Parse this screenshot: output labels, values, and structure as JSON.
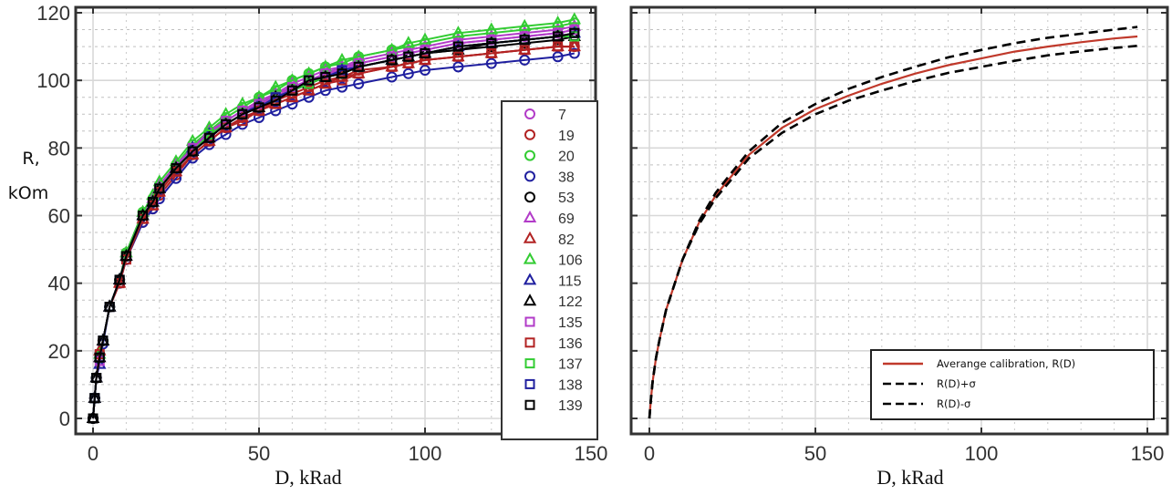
{
  "chart_data": [
    {
      "type": "line",
      "panel": "left",
      "title": "",
      "xlabel": "D, kRad",
      "ylabel": "R, kOm",
      "xlim": [
        -4,
        151
      ],
      "ylim": [
        -4.5,
        122
      ],
      "xticks": [
        0,
        50,
        100,
        150
      ],
      "yticks": [
        0,
        20,
        40,
        60,
        80,
        100,
        120
      ],
      "grid": true,
      "legend_position": "right-center",
      "x": [
        0,
        0.5,
        1,
        2,
        3,
        5,
        8,
        10,
        15,
        18,
        20,
        25,
        30,
        35,
        40,
        45,
        50,
        55,
        60,
        65,
        70,
        75,
        80,
        90,
        95,
        100,
        110,
        120,
        130,
        140,
        145
      ],
      "series": [
        {
          "name": "7",
          "color": "#b23bc8",
          "marker": "circle",
          "values": [
            0,
            6,
            12,
            19,
            23,
            33,
            41,
            48,
            60,
            64,
            68,
            74,
            80,
            84,
            88,
            91,
            93,
            96,
            98,
            100,
            102,
            104,
            105,
            107,
            108,
            109,
            111,
            112,
            113,
            114,
            115
          ]
        },
        {
          "name": "19",
          "color": "#b22222",
          "marker": "circle",
          "values": [
            0,
            6,
            12,
            19,
            23,
            33,
            40,
            47,
            58,
            62,
            66,
            72,
            78,
            82,
            86,
            89,
            91,
            94,
            96,
            98,
            100,
            101,
            103,
            104,
            105,
            106,
            107,
            108,
            109,
            110,
            110
          ]
        },
        {
          "name": "20",
          "color": "#33cc33",
          "marker": "circle",
          "values": [
            0,
            6,
            12,
            19,
            23,
            33,
            41,
            49,
            61,
            65,
            69,
            75,
            81,
            85,
            89,
            92,
            95,
            97,
            100,
            102,
            104,
            105,
            107,
            109,
            110,
            111,
            113,
            114,
            115,
            116,
            117
          ]
        },
        {
          "name": "38",
          "color": "#1f1f9f",
          "marker": "circle",
          "values": [
            0,
            6,
            12,
            18,
            22,
            33,
            40,
            47,
            58,
            62,
            65,
            71,
            77,
            81,
            84,
            87,
            89,
            91,
            93,
            95,
            97,
            98,
            99,
            101,
            102,
            103,
            104,
            105,
            106,
            107,
            108
          ]
        },
        {
          "name": "53",
          "color": "#000000",
          "marker": "circle",
          "values": [
            0,
            6,
            12,
            19,
            23,
            33,
            41,
            48,
            60,
            64,
            68,
            74,
            79,
            83,
            87,
            90,
            92,
            95,
            97,
            99,
            101,
            102,
            104,
            106,
            107,
            108,
            109,
            110,
            111,
            112,
            113
          ]
        },
        {
          "name": "69",
          "color": "#b23bc8",
          "marker": "triangle",
          "values": [
            0,
            6,
            12,
            18,
            23,
            33,
            41,
            49,
            61,
            65,
            69,
            75,
            80,
            85,
            88,
            91,
            94,
            96,
            99,
            101,
            103,
            104,
            106,
            108,
            109,
            110,
            112,
            113,
            114,
            115,
            116
          ]
        },
        {
          "name": "82",
          "color": "#b22222",
          "marker": "triangle",
          "values": [
            0,
            6,
            12,
            20,
            23,
            33,
            40,
            48,
            59,
            63,
            67,
            73,
            78,
            82,
            86,
            89,
            91,
            93,
            95,
            97,
            99,
            101,
            102,
            104,
            105,
            106,
            107,
            108,
            109,
            110,
            110
          ]
        },
        {
          "name": "106",
          "color": "#33cc33",
          "marker": "triangle",
          "values": [
            0,
            6,
            12,
            19,
            23,
            33,
            41,
            49,
            61,
            66,
            70,
            76,
            82,
            86,
            90,
            93,
            95,
            98,
            100,
            102,
            104,
            106,
            107,
            109,
            111,
            112,
            114,
            115,
            116,
            117,
            118
          ]
        },
        {
          "name": "115",
          "color": "#1f1f9f",
          "marker": "triangle",
          "values": [
            0,
            6,
            12,
            16,
            23,
            33,
            41,
            48,
            60,
            64,
            68,
            74,
            80,
            84,
            87,
            90,
            93,
            95,
            97,
            99,
            101,
            103,
            104,
            106,
            107,
            108,
            110,
            111,
            112,
            113,
            114
          ]
        },
        {
          "name": "122",
          "color": "#000000",
          "marker": "triangle",
          "values": [
            0,
            6,
            12,
            18,
            23,
            33,
            41,
            48,
            60,
            64,
            68,
            74,
            79,
            83,
            87,
            90,
            92,
            95,
            97,
            99,
            101,
            102,
            104,
            106,
            107,
            108,
            109,
            111,
            112,
            113,
            113
          ]
        },
        {
          "name": "135",
          "color": "#b23bc8",
          "marker": "square",
          "values": [
            0,
            6,
            12,
            17,
            23,
            33,
            41,
            48,
            60,
            64,
            68,
            74,
            80,
            84,
            88,
            91,
            93,
            95,
            98,
            100,
            102,
            103,
            105,
            107,
            108,
            109,
            111,
            112,
            113,
            114,
            115
          ]
        },
        {
          "name": "136",
          "color": "#b22222",
          "marker": "square",
          "values": [
            0,
            6,
            12,
            19,
            23,
            33,
            40,
            47,
            59,
            63,
            67,
            73,
            78,
            82,
            86,
            88,
            91,
            93,
            95,
            97,
            99,
            100,
            102,
            104,
            105,
            106,
            107,
            108,
            109,
            110,
            110
          ]
        },
        {
          "name": "137",
          "color": "#33cc33",
          "marker": "square",
          "values": [
            0,
            6,
            12,
            18,
            23,
            33,
            41,
            48,
            60,
            64,
            68,
            74,
            79,
            84,
            87,
            90,
            92,
            95,
            97,
            99,
            101,
            102,
            104,
            106,
            107,
            108,
            110,
            111,
            112,
            113,
            113
          ]
        },
        {
          "name": "138",
          "color": "#1f1f9f",
          "marker": "square",
          "values": [
            0,
            6,
            12,
            18,
            23,
            33,
            41,
            48,
            60,
            64,
            68,
            74,
            79,
            83,
            87,
            90,
            92,
            95,
            97,
            100,
            101,
            103,
            104,
            106,
            107,
            108,
            110,
            111,
            112,
            113,
            114
          ]
        },
        {
          "name": "139",
          "color": "#000000",
          "marker": "square",
          "values": [
            0,
            6,
            12,
            18,
            23,
            33,
            41,
            48,
            60,
            64,
            68,
            74,
            79,
            83,
            87,
            90,
            92,
            94,
            97,
            100,
            101,
            102,
            104,
            106,
            107,
            108,
            110,
            111,
            112,
            113,
            114
          ]
        }
      ]
    },
    {
      "type": "line",
      "panel": "right",
      "title": "",
      "xlabel": "D, kRad",
      "ylabel": "",
      "xlim": [
        -4,
        151
      ],
      "ylim": [
        -4.5,
        122
      ],
      "xticks": [
        0,
        50,
        100,
        150
      ],
      "yticks": [
        0,
        20,
        40,
        60,
        80,
        100,
        120
      ],
      "grid": true,
      "legend_position": "bottom-right",
      "x": [
        0,
        0.5,
        1,
        2,
        3,
        5,
        8,
        10,
        15,
        20,
        25,
        30,
        40,
        50,
        60,
        70,
        80,
        90,
        100,
        110,
        120,
        130,
        140,
        147
      ],
      "series": [
        {
          "name": "Averange calibration, R(D)",
          "color": "#c0392b",
          "style": "solid",
          "values": [
            0,
            6,
            11,
            18,
            23,
            32,
            41,
            47,
            58,
            66,
            72,
            78,
            86,
            91.5,
            95.5,
            99,
            102,
            104.5,
            106.5,
            108.5,
            110,
            111.3,
            112.4,
            113
          ]
        },
        {
          "name": "R(D)+σ",
          "color": "#000000",
          "style": "dashed",
          "values": [
            0,
            6,
            11,
            18,
            23,
            32,
            41,
            47,
            58.5,
            66.8,
            73,
            79,
            87.5,
            93,
            97.5,
            101,
            104,
            106.8,
            109,
            111,
            112.6,
            113.8,
            115,
            115.8
          ]
        },
        {
          "name": "R(D)-σ",
          "color": "#000000",
          "style": "dashed",
          "values": [
            0,
            6,
            11,
            18,
            23,
            32,
            41,
            47,
            57.5,
            65.2,
            71,
            77,
            84.5,
            90,
            94,
            97,
            99.8,
            102.2,
            104,
            105.8,
            107.4,
            108.6,
            109.6,
            110.2
          ]
        }
      ]
    }
  ]
}
